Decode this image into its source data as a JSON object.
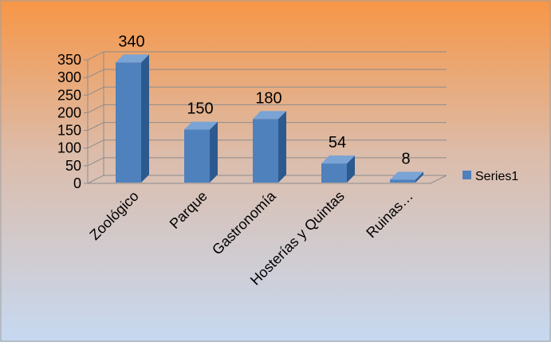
{
  "chart_data": {
    "type": "bar",
    "categories": [
      "Zoológico",
      "Parque",
      "Gastronomía",
      "Hosterías y Quintas",
      "Ruinas…"
    ],
    "series": [
      {
        "name": "Series1",
        "values": [
          340,
          150,
          180,
          54,
          8
        ]
      }
    ],
    "data_labels": [
      "340",
      "150",
      "180",
      "54",
      "8"
    ],
    "y_ticks": [
      {
        "value": 0,
        "label": "0"
      },
      {
        "value": 50,
        "label": "50"
      },
      {
        "value": 100,
        "label": "100"
      },
      {
        "value": 150,
        "label": "150"
      },
      {
        "value": 200,
        "label": "200"
      },
      {
        "value": 250,
        "label": "250"
      },
      {
        "value": 300,
        "label": "300"
      },
      {
        "value": 350,
        "label": "350"
      }
    ],
    "ylim": [
      0,
      350
    ],
    "grid": true,
    "three_d": true,
    "legend_position": "right",
    "colors": {
      "bar_front": "#4f81bd",
      "bar_side": "#2c5a8f",
      "bar_top": "#7aa3d6",
      "background_top": "#f79646",
      "background_bottom": "#c6d9f1",
      "gridline": "#8c8c8c"
    }
  }
}
